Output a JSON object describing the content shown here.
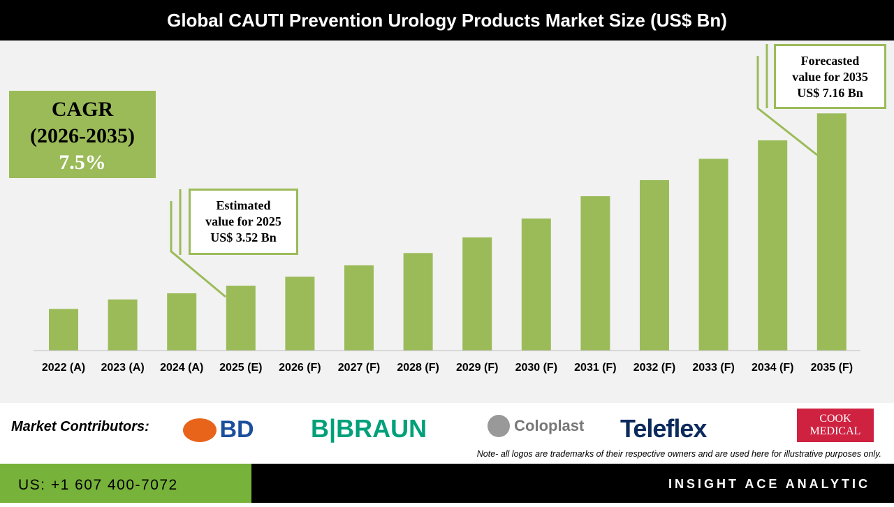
{
  "chart_data": {
    "type": "bar",
    "title": "Global CAUTI Prevention Urology Products Market Size (US$ Bn)",
    "categories": [
      "2022 (A)",
      "2023 (A)",
      "2024 (A)",
      "2025 (E)",
      "2026 (F)",
      "2027 (F)",
      "2028 (F)",
      "2029 (F)",
      "2030 (F)",
      "2031 (F)",
      "2032 (F)",
      "2033 (F)",
      "2034 (F)",
      "2035 (F)"
    ],
    "values": [
      3.03,
      3.23,
      3.36,
      3.52,
      3.71,
      3.95,
      4.21,
      4.54,
      4.94,
      5.41,
      5.75,
      6.2,
      6.59,
      7.16
    ],
    "bar_color": "#9bbb59",
    "grid": false,
    "annotations": {
      "cagr": {
        "label": "CAGR",
        "period": "(2026-2035)",
        "value": "7.5%"
      },
      "estimated": {
        "line1": "Estimated",
        "line2": "value for 2025",
        "line3": "US$ 3.52 Bn"
      },
      "forecast": {
        "line1": "Forecasted",
        "line2": "value for 2035",
        "line3": "US$ 7.16 Bn"
      }
    }
  },
  "footer": {
    "contributors_label": "Market Contributors:",
    "logos": [
      "BD",
      "B|BRAUN",
      "Coloplast",
      "Teleflex",
      "COOK MEDICAL"
    ],
    "note": "Note- all logos are trademarks of their respective owners and are used here for illustrative purposes only.",
    "phone": "US: +1 607 400-7072",
    "brand": "INSIGHT ACE ANALYTIC"
  },
  "colors": {
    "accent": "#9bbb59",
    "footer_green": "#77b23a"
  }
}
